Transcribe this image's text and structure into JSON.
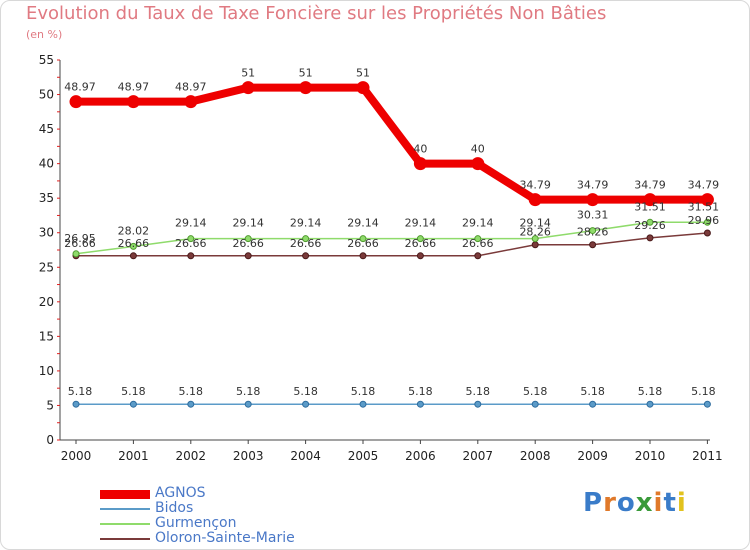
{
  "title": "Evolution du Taux de Taxe Foncière sur les Propriétés Non Bâties",
  "unit_label": "(en %)",
  "logo_text": "Proxiti",
  "chart_data": {
    "type": "line",
    "x": [
      "2000",
      "2001",
      "2002",
      "2003",
      "2004",
      "2005",
      "2006",
      "2007",
      "2008",
      "2009",
      "2010",
      "2011"
    ],
    "ylim": [
      0,
      55
    ],
    "yticks": [
      0,
      5,
      10,
      15,
      20,
      25,
      30,
      35,
      40,
      45,
      50,
      55
    ],
    "grid": false,
    "legend_position": "bottom-left",
    "series": [
      {
        "name": "AGNOS",
        "color": "#ee0000",
        "values": [
          48.97,
          48.97,
          48.97,
          51,
          51,
          51,
          40,
          40,
          34.79,
          34.79,
          34.79,
          34.79
        ],
        "labels": [
          "48.97",
          "48.97",
          "48.97",
          "51",
          "51",
          "51",
          "40",
          "40",
          "34.79",
          "34.79",
          "34.79",
          "34.79"
        ]
      },
      {
        "name": "Bidos",
        "color": "#5b9bc8",
        "values": [
          5.18,
          5.18,
          5.18,
          5.18,
          5.18,
          5.18,
          5.18,
          5.18,
          5.18,
          5.18,
          5.18,
          5.18
        ],
        "labels": [
          "5.18",
          "5.18",
          "5.18",
          "5.18",
          "5.18",
          "5.18",
          "5.18",
          "5.18",
          "5.18",
          "5.18",
          "5.18",
          "5.18"
        ]
      },
      {
        "name": "Gurmençon",
        "color": "#8fdb6b",
        "values": [
          26.95,
          28.02,
          29.14,
          29.14,
          29.14,
          29.14,
          29.14,
          29.14,
          29.14,
          30.31,
          31.51,
          31.51
        ],
        "labels": [
          "26.95",
          "28.02",
          "29.14",
          "29.14",
          "29.14",
          "29.14",
          "29.14",
          "29.14",
          "29.14",
          "30.31",
          "31.51",
          "31.51"
        ]
      },
      {
        "name": "Oloron-Sainte-Marie",
        "color": "#7a3a3a",
        "values": [
          26.66,
          26.66,
          26.66,
          26.66,
          26.66,
          26.66,
          26.66,
          26.66,
          28.26,
          28.26,
          29.26,
          29.96
        ],
        "labels": [
          "26.66",
          "26.66",
          "26.66",
          "26.66",
          "26.66",
          "26.66",
          "26.66",
          "26.66",
          "28.26",
          "28.26",
          "29.26",
          "29.96"
        ]
      }
    ]
  }
}
